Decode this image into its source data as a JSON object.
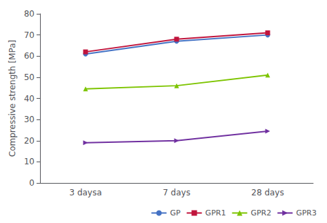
{
  "chart_data": {
    "type": "line",
    "categories": [
      "3 daysa",
      "7 days",
      "28 days"
    ],
    "series": [
      {
        "name": "GP",
        "color": "#4472C4",
        "marker": "circle",
        "values": [
          61,
          67,
          70
        ]
      },
      {
        "name": "GPR1",
        "color": "#C0143C",
        "marker": "square",
        "values": [
          62,
          68,
          71
        ]
      },
      {
        "name": "GPR2",
        "color": "#7DC400",
        "marker": "triangle-up",
        "values": [
          44.5,
          46,
          51
        ]
      },
      {
        "name": "GPR3",
        "color": "#7030A0",
        "marker": "triangle-right",
        "values": [
          19,
          20,
          24.5
        ]
      }
    ],
    "ylabel": "Compressive strength [MPa]",
    "ylim": [
      0,
      80
    ],
    "yticks": [
      0,
      10,
      20,
      30,
      40,
      50,
      60,
      70,
      80
    ],
    "grid": false,
    "legend": "lower right"
  }
}
